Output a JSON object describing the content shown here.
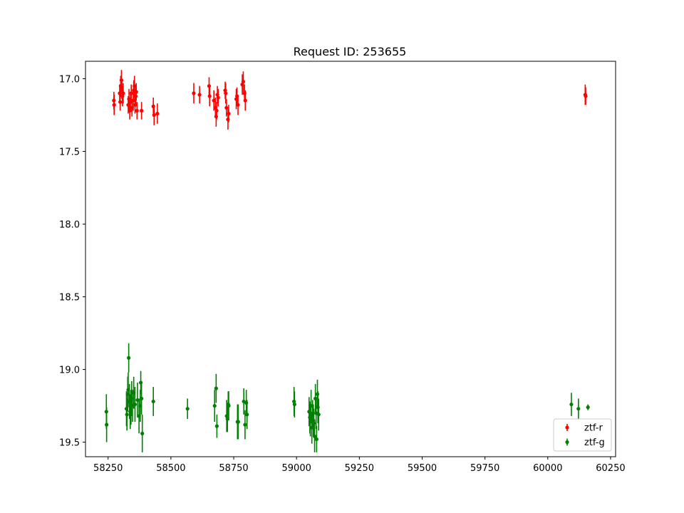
{
  "chart_data": {
    "type": "scatter",
    "title": "Request ID: 253655",
    "xlabel": "",
    "ylabel": "",
    "xlim": [
      58160,
      60270
    ],
    "ylim": [
      19.6,
      16.88
    ],
    "y_inverted": true,
    "x_ticks": [
      58250,
      58500,
      58750,
      59000,
      59250,
      59500,
      59750,
      60000,
      60250
    ],
    "x_tick_labels": [
      "58250",
      "58500",
      "58750",
      "59000",
      "59250",
      "59500",
      "59750",
      "60000",
      "60250"
    ],
    "y_ticks": [
      17.0,
      17.5,
      18.0,
      18.5,
      19.0,
      19.5
    ],
    "y_tick_labels": [
      "17.0",
      "17.5",
      "18.0",
      "18.5",
      "19.0",
      "19.5"
    ],
    "grid": false,
    "legend_position": "lower-right",
    "series": [
      {
        "name": "ztf-r",
        "color": "#ff0000",
        "points": [
          {
            "x": 58273,
            "y": 17.15,
            "err": 0.06
          },
          {
            "x": 58274,
            "y": 17.18,
            "err": 0.07
          },
          {
            "x": 58296,
            "y": 17.1,
            "err": 0.06
          },
          {
            "x": 58298,
            "y": 17.16,
            "err": 0.06
          },
          {
            "x": 58300,
            "y": 17.05,
            "err": 0.07
          },
          {
            "x": 58303,
            "y": 17.01,
            "err": 0.07
          },
          {
            "x": 58305,
            "y": 17.08,
            "err": 0.06
          },
          {
            "x": 58307,
            "y": 17.12,
            "err": 0.07
          },
          {
            "x": 58310,
            "y": 17.1,
            "err": 0.07
          },
          {
            "x": 58330,
            "y": 17.18,
            "err": 0.06
          },
          {
            "x": 58333,
            "y": 17.14,
            "err": 0.07
          },
          {
            "x": 58336,
            "y": 17.22,
            "err": 0.06
          },
          {
            "x": 58339,
            "y": 17.16,
            "err": 0.07
          },
          {
            "x": 58342,
            "y": 17.1,
            "err": 0.06
          },
          {
            "x": 58345,
            "y": 17.2,
            "err": 0.06
          },
          {
            "x": 58350,
            "y": 17.15,
            "err": 0.07
          },
          {
            "x": 58352,
            "y": 17.08,
            "err": 0.07
          },
          {
            "x": 58355,
            "y": 17.05,
            "err": 0.07
          },
          {
            "x": 58357,
            "y": 17.18,
            "err": 0.06
          },
          {
            "x": 58360,
            "y": 17.12,
            "err": 0.06
          },
          {
            "x": 58362,
            "y": 17.09,
            "err": 0.06
          },
          {
            "x": 58365,
            "y": 17.22,
            "err": 0.06
          },
          {
            "x": 58383,
            "y": 17.22,
            "err": 0.06
          },
          {
            "x": 58430,
            "y": 17.19,
            "err": 0.06
          },
          {
            "x": 58433,
            "y": 17.25,
            "err": 0.07
          },
          {
            "x": 58446,
            "y": 17.24,
            "err": 0.07
          },
          {
            "x": 58591,
            "y": 17.1,
            "err": 0.07
          },
          {
            "x": 58614,
            "y": 17.11,
            "err": 0.06
          },
          {
            "x": 58652,
            "y": 17.05,
            "err": 0.06
          },
          {
            "x": 58654,
            "y": 17.12,
            "err": 0.07
          },
          {
            "x": 58671,
            "y": 17.15,
            "err": 0.07
          },
          {
            "x": 58677,
            "y": 17.2,
            "err": 0.07
          },
          {
            "x": 58680,
            "y": 17.26,
            "err": 0.07
          },
          {
            "x": 58682,
            "y": 17.22,
            "err": 0.06
          },
          {
            "x": 58685,
            "y": 17.11,
            "err": 0.06
          },
          {
            "x": 58688,
            "y": 17.13,
            "err": 0.06
          },
          {
            "x": 58716,
            "y": 17.08,
            "err": 0.06
          },
          {
            "x": 58718,
            "y": 17.1,
            "err": 0.07
          },
          {
            "x": 58721,
            "y": 17.2,
            "err": 0.06
          },
          {
            "x": 58727,
            "y": 17.28,
            "err": 0.07
          },
          {
            "x": 58730,
            "y": 17.24,
            "err": 0.06
          },
          {
            "x": 58760,
            "y": 17.14,
            "err": 0.07
          },
          {
            "x": 58763,
            "y": 17.12,
            "err": 0.06
          },
          {
            "x": 58767,
            "y": 17.18,
            "err": 0.07
          },
          {
            "x": 58784,
            "y": 17.04,
            "err": 0.07
          },
          {
            "x": 58788,
            "y": 17.02,
            "err": 0.07
          },
          {
            "x": 58793,
            "y": 17.1,
            "err": 0.06
          },
          {
            "x": 58796,
            "y": 17.15,
            "err": 0.07
          },
          {
            "x": 60149,
            "y": 17.11,
            "err": 0.07
          },
          {
            "x": 60151,
            "y": 17.12,
            "err": 0.06
          }
        ]
      },
      {
        "name": "ztf-g",
        "color": "#008000",
        "points": [
          {
            "x": 58243,
            "y": 19.29,
            "err": 0.12
          },
          {
            "x": 58244,
            "y": 19.38,
            "err": 0.12
          },
          {
            "x": 58323,
            "y": 19.27,
            "err": 0.12
          },
          {
            "x": 58325,
            "y": 19.31,
            "err": 0.11
          },
          {
            "x": 58328,
            "y": 19.17,
            "err": 0.12
          },
          {
            "x": 58330,
            "y": 19.14,
            "err": 0.12
          },
          {
            "x": 58332,
            "y": 18.92,
            "err": 0.1
          },
          {
            "x": 58335,
            "y": 19.22,
            "err": 0.12
          },
          {
            "x": 58338,
            "y": 19.29,
            "err": 0.12
          },
          {
            "x": 58341,
            "y": 19.26,
            "err": 0.12
          },
          {
            "x": 58344,
            "y": 19.2,
            "err": 0.12
          },
          {
            "x": 58347,
            "y": 19.25,
            "err": 0.11
          },
          {
            "x": 58352,
            "y": 19.16,
            "err": 0.11
          },
          {
            "x": 58357,
            "y": 19.24,
            "err": 0.12
          },
          {
            "x": 58367,
            "y": 19.21,
            "err": 0.12
          },
          {
            "x": 58373,
            "y": 19.32,
            "err": 0.12
          },
          {
            "x": 58378,
            "y": 19.25,
            "err": 0.11
          },
          {
            "x": 58380,
            "y": 19.09,
            "err": 0.08
          },
          {
            "x": 58383,
            "y": 19.2,
            "err": 0.11
          },
          {
            "x": 58386,
            "y": 19.44,
            "err": 0.13
          },
          {
            "x": 58430,
            "y": 19.22,
            "err": 0.1
          },
          {
            "x": 58566,
            "y": 19.27,
            "err": 0.07
          },
          {
            "x": 58674,
            "y": 19.25,
            "err": 0.11
          },
          {
            "x": 58680,
            "y": 19.13,
            "err": 0.1
          },
          {
            "x": 58683,
            "y": 19.39,
            "err": 0.08
          },
          {
            "x": 58722,
            "y": 19.32,
            "err": 0.11
          },
          {
            "x": 58725,
            "y": 19.34,
            "err": 0.09
          },
          {
            "x": 58728,
            "y": 19.24,
            "err": 0.09
          },
          {
            "x": 58730,
            "y": 19.25,
            "err": 0.1
          },
          {
            "x": 58765,
            "y": 19.36,
            "err": 0.12
          },
          {
            "x": 58768,
            "y": 19.36,
            "err": 0.12
          },
          {
            "x": 58790,
            "y": 19.22,
            "err": 0.09
          },
          {
            "x": 58795,
            "y": 19.38,
            "err": 0.1
          },
          {
            "x": 58800,
            "y": 19.23,
            "err": 0.09
          },
          {
            "x": 58803,
            "y": 19.31,
            "err": 0.1
          },
          {
            "x": 58990,
            "y": 19.22,
            "err": 0.1
          },
          {
            "x": 58992,
            "y": 19.24,
            "err": 0.09
          },
          {
            "x": 59050,
            "y": 19.29,
            "err": 0.1
          },
          {
            "x": 59053,
            "y": 19.33,
            "err": 0.11
          },
          {
            "x": 59055,
            "y": 19.36,
            "err": 0.1
          },
          {
            "x": 59058,
            "y": 19.25,
            "err": 0.11
          },
          {
            "x": 59061,
            "y": 19.4,
            "err": 0.11
          },
          {
            "x": 59064,
            "y": 19.31,
            "err": 0.1
          },
          {
            "x": 59067,
            "y": 19.35,
            "err": 0.11
          },
          {
            "x": 59069,
            "y": 19.37,
            "err": 0.1
          },
          {
            "x": 59072,
            "y": 19.46,
            "err": 0.11
          },
          {
            "x": 59075,
            "y": 19.2,
            "err": 0.1
          },
          {
            "x": 59078,
            "y": 19.3,
            "err": 0.11
          },
          {
            "x": 59080,
            "y": 19.48,
            "err": 0.09
          },
          {
            "x": 59083,
            "y": 19.17,
            "err": 0.1
          },
          {
            "x": 59085,
            "y": 19.26,
            "err": 0.11
          },
          {
            "x": 59088,
            "y": 19.31,
            "err": 0.11
          },
          {
            "x": 60094,
            "y": 19.24,
            "err": 0.08
          },
          {
            "x": 60122,
            "y": 19.27,
            "err": 0.07
          },
          {
            "x": 60160,
            "y": 19.26,
            "err": 0.02
          }
        ]
      }
    ]
  }
}
